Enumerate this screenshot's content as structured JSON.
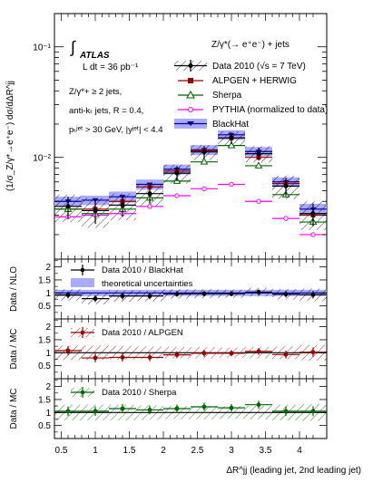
{
  "figure": {
    "xlabel": "ΔR^jj (leading jet, 2nd leading jet)",
    "xticks": [
      "0.5",
      "1",
      "1.5",
      "2",
      "2.5",
      "3",
      "3.5",
      "4"
    ]
  },
  "atlas": {
    "logo": "ATLAS",
    "lumi": "L dt = 36 pb⁻¹",
    "selection": "Z/γ*+ ≥ 2 jets,",
    "algo": "anti-kₜ jets, R = 0.4,",
    "cuts": "pₜʲᵉᵗ > 30 GeV, |yʲᵉᵗ| < 4.4"
  },
  "legend": {
    "header": "Z/γ*(→ e⁺e⁻) + jets",
    "entries": {
      "data": "Data 2010 (√s = 7 TeV)",
      "alpgen": "ALPGEN + HERWIG",
      "sherpa": "Sherpa",
      "pythia": "PYTHIA (normalized to data)",
      "blackhat": "BlackHat"
    }
  },
  "colors": {
    "data": "#000000",
    "alpgen": "#990000",
    "sherpa": "#006600",
    "pythia": "#ff00ff",
    "blackhat": "#000099",
    "blackhat_band": "#aaaaff"
  },
  "chart_data": [
    {
      "type": "line",
      "panel": "main",
      "ylabel": "(1/σ_Z/γ*→e⁺e⁻) dσ/dΔR^jj",
      "yscale": "log",
      "ylim": [
        0.0012,
        0.2
      ],
      "xlim": [
        0.4,
        4.4
      ],
      "yticks": [
        "10⁻²",
        "10⁻¹"
      ],
      "x": [
        0.6,
        1.0,
        1.4,
        1.8,
        2.2,
        2.6,
        3.0,
        3.4,
        3.8,
        4.2
      ],
      "series": [
        {
          "name": "Data 2010 (√s = 7 TeV)",
          "values": [
            0.0036,
            0.0033,
            0.0037,
            0.0047,
            0.0072,
            0.0112,
            0.015,
            0.0108,
            0.0055,
            0.0031
          ],
          "uncertainty": [
            0.001,
            0.001,
            0.001,
            0.0011,
            0.0014,
            0.0018,
            0.0022,
            0.0018,
            0.0013,
            0.0009
          ]
        },
        {
          "name": "ALPGEN + HERWIG",
          "values": [
            0.0034,
            0.0034,
            0.004,
            0.0054,
            0.0075,
            0.0115,
            0.015,
            0.01,
            0.0058,
            0.003
          ]
        },
        {
          "name": "Sherpa",
          "values": [
            0.0034,
            0.0031,
            0.0034,
            0.0043,
            0.0061,
            0.0091,
            0.0128,
            0.0084,
            0.0046,
            0.0026
          ]
        },
        {
          "name": "PYTHIA (normalized to data)",
          "values": [
            0.0029,
            0.003,
            0.0031,
            0.0036,
            0.0045,
            0.0052,
            0.0057,
            0.004,
            0.0028,
            0.002
          ]
        },
        {
          "name": "BlackHat",
          "values": [
            0.004,
            0.0041,
            0.0044,
            0.0057,
            0.0078,
            0.0117,
            0.016,
            0.0113,
            0.006,
            0.0034
          ],
          "band": [
            0.0004,
            0.0004,
            0.0005,
            0.0006,
            0.0008,
            0.0012,
            0.0016,
            0.0011,
            0.0006,
            0.0004
          ]
        }
      ]
    },
    {
      "type": "scatter",
      "panel": "ratio-nlo",
      "ylabel": "Data / NLO",
      "ylim": [
        0,
        2.3
      ],
      "yticks": [
        "0.5",
        "1",
        "1.5",
        "2"
      ],
      "legend": [
        "Data 2010 / BlackHat",
        "theoretical uncertainties"
      ],
      "x": [
        0.6,
        1.0,
        1.4,
        1.8,
        2.2,
        2.6,
        3.0,
        3.4,
        3.8,
        4.2
      ],
      "values": [
        0.92,
        0.78,
        0.88,
        0.88,
        0.96,
        0.97,
        0.97,
        1.03,
        0.95,
        0.93
      ],
      "uncertainty": [
        0.22,
        0.22,
        0.22,
        0.2,
        0.18,
        0.17,
        0.16,
        0.17,
        0.2,
        0.24
      ],
      "band": [
        0.12,
        0.12,
        0.12,
        0.12,
        0.12,
        0.12,
        0.12,
        0.12,
        0.12,
        0.12
      ]
    },
    {
      "type": "scatter",
      "panel": "ratio-alpgen",
      "ylabel": "Data / MC",
      "ylim": [
        0,
        2.3
      ],
      "yticks": [
        "0.5",
        "1",
        "1.5",
        "2"
      ],
      "legend": [
        "Data 2010 / ALPGEN"
      ],
      "x": [
        0.6,
        1.0,
        1.4,
        1.8,
        2.2,
        2.6,
        3.0,
        3.4,
        3.8,
        4.2
      ],
      "values": [
        1.08,
        0.8,
        0.82,
        0.82,
        0.92,
        0.98,
        0.98,
        1.05,
        0.93,
        1.02
      ],
      "uncertainty": [
        0.28,
        0.28,
        0.26,
        0.24,
        0.22,
        0.22,
        0.2,
        0.22,
        0.25,
        0.3
      ],
      "band": [
        0.28,
        0.28,
        0.26,
        0.24,
        0.22,
        0.22,
        0.2,
        0.22,
        0.25,
        0.3
      ]
    },
    {
      "type": "scatter",
      "panel": "ratio-sherpa",
      "ylabel": "Data / MC",
      "ylim": [
        0,
        2.3
      ],
      "yticks": [
        "0.5",
        "1",
        "1.5",
        "2"
      ],
      "legend": [
        "Data 2010 / Sherpa"
      ],
      "x": [
        0.6,
        1.0,
        1.4,
        1.8,
        2.2,
        2.6,
        3.0,
        3.4,
        3.8,
        4.2
      ],
      "values": [
        1.05,
        1.05,
        1.15,
        1.1,
        1.15,
        1.22,
        1.18,
        1.3,
        1.05,
        1.05
      ],
      "uncertainty": [
        0.3,
        0.3,
        0.3,
        0.28,
        0.26,
        0.26,
        0.24,
        0.26,
        0.3,
        0.32
      ],
      "band": [
        0.3,
        0.3,
        0.3,
        0.28,
        0.26,
        0.26,
        0.24,
        0.26,
        0.3,
        0.32
      ]
    }
  ]
}
